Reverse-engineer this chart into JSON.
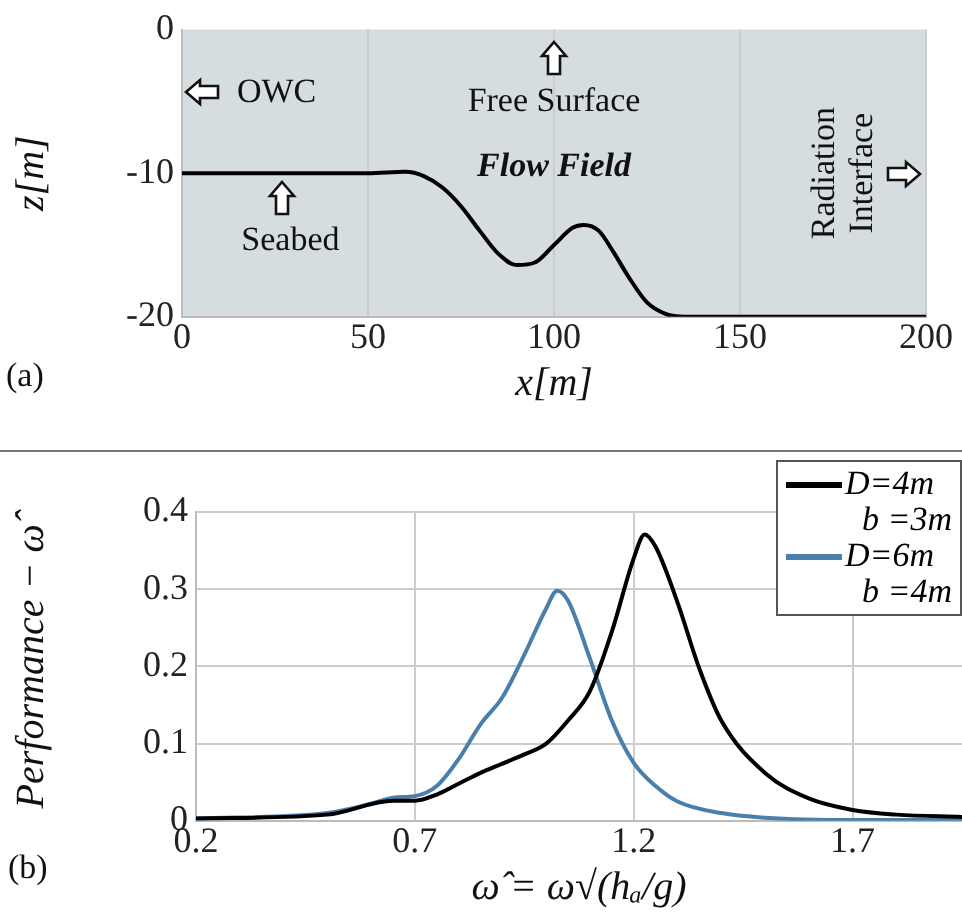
{
  "chart_data": [
    {
      "type": "line",
      "xlabel": "x[m]",
      "ylabel": "z[m]",
      "xlim": [
        0,
        200
      ],
      "xticks": [
        0,
        50,
        100,
        150,
        200
      ],
      "ylim": [
        -20,
        0
      ],
      "yticks": [
        -20,
        -10,
        0
      ],
      "grid": "x",
      "legend": false,
      "marker": "none",
      "annotations": [
        "(a)",
        "OWC",
        "Free Surface",
        "Flow Field",
        "Radiation Interface",
        {
          "text": "Seabed",
          "x": 27,
          "y": -10
        }
      ],
      "series": [
        {
          "color": "#000000",
          "x": [
            0,
            20,
            40,
            50,
            60,
            65,
            70,
            75,
            80,
            85,
            90,
            95,
            100,
            105,
            108,
            112,
            116,
            120,
            125,
            130,
            135,
            150,
            200
          ],
          "values": [
            -10,
            -10,
            -10,
            -10,
            -9.9,
            -10.2,
            -11,
            -12.3,
            -14,
            -15.6,
            -16.4,
            -16.2,
            -15,
            -13.8,
            -13.6,
            -14,
            -15.5,
            -17.2,
            -19,
            -19.8,
            -20,
            -20,
            -20
          ]
        }
      ]
    },
    {
      "type": "line",
      "xlabel": "ω̂ = ω√(hₐ/g)",
      "ylabel": "Performance − ω̂",
      "xlim": [
        0.2,
        1.95
      ],
      "xticks": [
        0.2,
        0.7,
        1.2,
        1.7
      ],
      "ylim": [
        0,
        0.4
      ],
      "yticks": [
        0,
        0.1,
        0.2,
        0.3,
        0.4
      ],
      "grid": true,
      "legend": "top right",
      "marker": "none",
      "annotations": [
        "(b)"
      ],
      "series": [
        {
          "name": "D=4m b =3m",
          "color": "#000000",
          "x": [
            0.2,
            0.5,
            0.65,
            0.7,
            0.75,
            0.8,
            0.85,
            0.9,
            0.95,
            1.0,
            1.05,
            1.1,
            1.15,
            1.2,
            1.225,
            1.25,
            1.3,
            1.35,
            1.4,
            1.5,
            1.6,
            1.7,
            1.8,
            1.95
          ],
          "values": [
            0.003,
            0.008,
            0.026,
            0.026,
            0.034,
            0.048,
            0.062,
            0.074,
            0.086,
            0.1,
            0.13,
            0.168,
            0.245,
            0.34,
            0.371,
            0.355,
            0.283,
            0.197,
            0.13,
            0.062,
            0.029,
            0.014,
            0.008,
            0.005
          ]
        },
        {
          "name": "D=6m b =4m",
          "color": "#4a7fab",
          "x": [
            0.2,
            0.5,
            0.6,
            0.65,
            0.7,
            0.75,
            0.8,
            0.85,
            0.9,
            0.95,
            1.0,
            1.025,
            1.05,
            1.1,
            1.15,
            1.2,
            1.25,
            1.3,
            1.4,
            1.5,
            1.7,
            1.95
          ],
          "values": [
            0.003,
            0.01,
            0.022,
            0.03,
            0.032,
            0.045,
            0.08,
            0.125,
            0.16,
            0.215,
            0.275,
            0.298,
            0.285,
            0.21,
            0.13,
            0.075,
            0.045,
            0.025,
            0.01,
            0.004,
            0.001,
            0.001
          ]
        }
      ]
    }
  ]
}
